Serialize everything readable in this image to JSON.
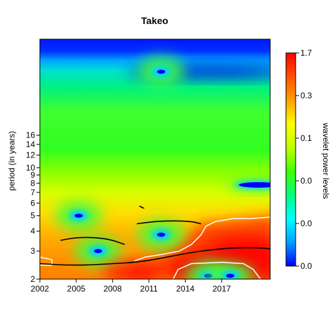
{
  "chart_data": {
    "type": "heatmap",
    "title": "Takeo",
    "xlabel": "",
    "ylabel": "period (in years)",
    "colorbar_label": "wavelet power levels",
    "x_ticks": [
      2002,
      2005,
      2008,
      2011,
      2014,
      2017
    ],
    "xlim": [
      2002,
      2021
    ],
    "y_ticks": [
      2,
      3,
      4,
      5,
      6,
      7,
      8,
      9,
      10,
      12,
      14,
      16
    ],
    "ylim": [
      2,
      64
    ],
    "y_scale": "log",
    "colorbar_ticks": [
      "0.0",
      "0.0",
      "0.0",
      "0.1",
      "0.3",
      "1.7"
    ],
    "colorscale": [
      "#0000ff",
      "#00a0ff",
      "#00ffff",
      "#00ff80",
      "#40ff00",
      "#c0ff00",
      "#ffff00",
      "#ffa000",
      "#ff5000",
      "#ff0000"
    ],
    "power_peaks": [
      {
        "x": 2005.2,
        "y": 5.0,
        "level": "low"
      },
      {
        "x": 2006.8,
        "y": 3.0,
        "level": "low"
      },
      {
        "x": 2012.0,
        "y": 3.8,
        "level": "low"
      },
      {
        "x": 2015.9,
        "y": 2.1,
        "level": "low"
      },
      {
        "x": 2017.7,
        "y": 2.1,
        "level": "low"
      },
      {
        "x": 2020.0,
        "y": 7.8,
        "level": "low"
      },
      {
        "x": 2012.0,
        "y": 40,
        "level": "low"
      },
      {
        "x": 2018.5,
        "y": 3.1,
        "level": "high"
      },
      {
        "x": 2009.5,
        "y": 2.2,
        "level": "high"
      }
    ],
    "ridge_lines": [
      {
        "points": [
          [
            2002.0,
            2.5
          ],
          [
            2004.0,
            2.45
          ],
          [
            2006.0,
            2.45
          ],
          [
            2008.0,
            2.5
          ],
          [
            2010.0,
            2.55
          ],
          [
            2012.0,
            2.7
          ],
          [
            2014.0,
            2.9
          ],
          [
            2016.0,
            3.05
          ],
          [
            2018.0,
            3.15
          ],
          [
            2020.0,
            3.15
          ],
          [
            2021.0,
            3.1
          ]
        ]
      },
      {
        "points": [
          [
            2003.7,
            3.5
          ],
          [
            2005.0,
            3.65
          ],
          [
            2006.5,
            3.65
          ],
          [
            2007.8,
            3.55
          ],
          [
            2009.0,
            3.3
          ]
        ]
      },
      {
        "points": [
          [
            2010.0,
            4.45
          ],
          [
            2011.5,
            4.6
          ],
          [
            2013.0,
            4.65
          ],
          [
            2014.5,
            4.6
          ],
          [
            2015.3,
            4.45
          ]
        ]
      },
      {
        "points": [
          [
            2010.2,
            5.75
          ],
          [
            2010.6,
            5.55
          ]
        ]
      }
    ],
    "significance_contours": [
      {
        "points": [
          [
            2009.8,
            2.6
          ],
          [
            2010.7,
            2.75
          ],
          [
            2012.0,
            2.85
          ],
          [
            2013.5,
            3.0
          ],
          [
            2014.5,
            3.3
          ],
          [
            2015.3,
            3.8
          ],
          [
            2015.7,
            4.3
          ],
          [
            2016.5,
            4.6
          ],
          [
            2018.0,
            4.8
          ],
          [
            2019.5,
            4.8
          ],
          [
            2021.0,
            4.9
          ]
        ]
      },
      {
        "points": [
          [
            2013.0,
            2.0
          ],
          [
            2013.4,
            2.3
          ],
          [
            2014.5,
            2.5
          ],
          [
            2017.0,
            2.55
          ],
          [
            2018.8,
            2.5
          ],
          [
            2019.6,
            2.3
          ],
          [
            2020.2,
            2.0
          ]
        ]
      },
      {
        "points": [
          [
            2002.0,
            2.75
          ],
          [
            2003.0,
            2.65
          ],
          [
            2003.0,
            2.45
          ],
          [
            2002.0,
            2.45
          ]
        ]
      }
    ]
  }
}
